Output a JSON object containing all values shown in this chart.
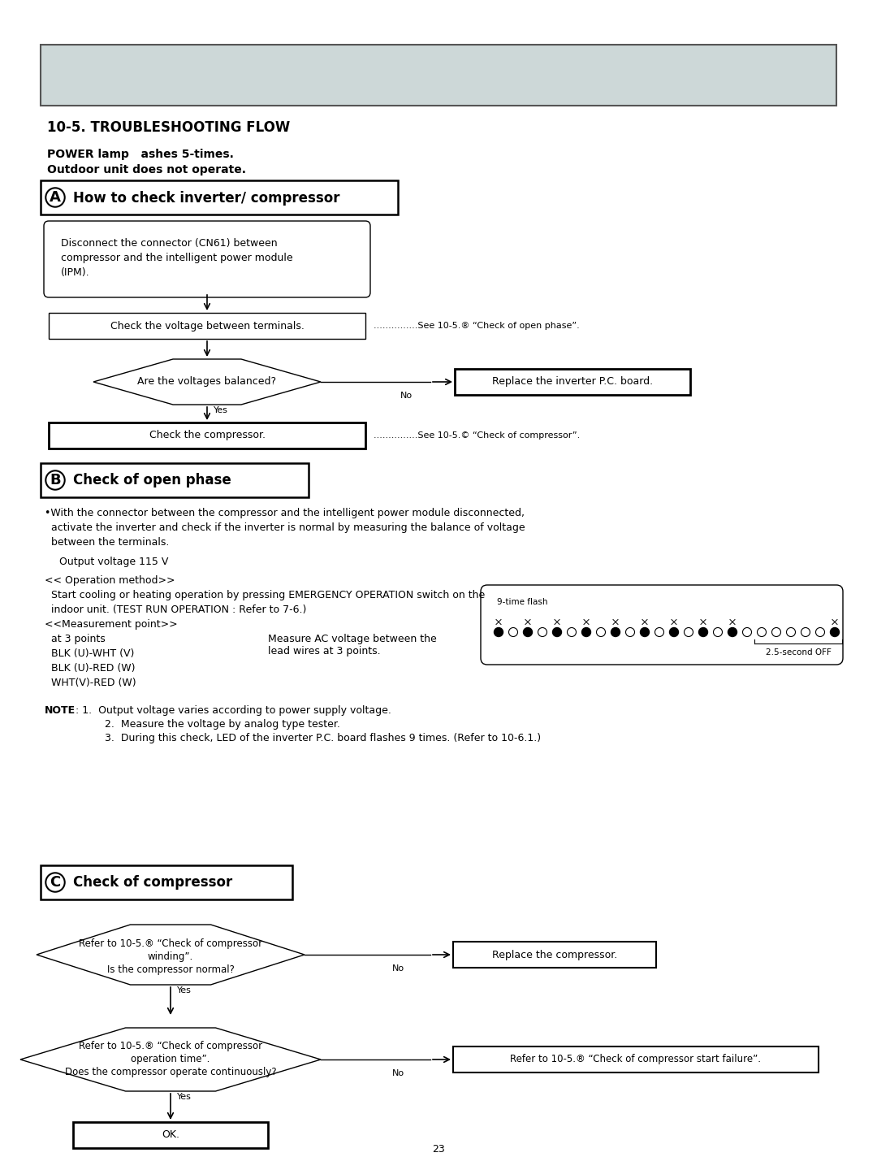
{
  "bg_color": "#ffffff",
  "header_rect_color": "#cdd8d8",
  "title_section": "10-5. TROUBLESHOOTING FLOW",
  "power_lamp_line1": "POWER lamp   ashes 5-times.",
  "power_lamp_line2": "Outdoor unit does not operate.",
  "section_A_title": "A  How to check inverter/ compressor",
  "section_B_title": "B  Check of open phase",
  "section_C_title": "C  Check of compressor",
  "box_A1_line1": "Disconnect the connector (CN61) between",
  "box_A1_line2": "compressor and the intelligent power module",
  "box_A1_line3": "(IPM).",
  "box_A2": "Check the voltage between terminals.",
  "diamond_A": "Are the voltages balanced?",
  "box_A3": "Check the compressor.",
  "box_A_no": "Replace the inverter P.C. board.",
  "ref_A2": "...............See 10-5.® “Check of open phase”.",
  "ref_A3": "...............See 10-5.© “Check of compressor”.",
  "section_B_bullet": "•With the connector between the compressor and the intelligent power module disconnected,",
  "section_B_bullet2": "  activate the inverter and check if the inverter is normal by measuring the balance of voltage",
  "section_B_bullet3": "  between the terminals.",
  "section_B_voltage": "  Output voltage 115 V",
  "section_B_op1": "<< Operation method>>",
  "section_B_op2": "  Start cooling or heating operation by pressing EMERGENCY OPERATION switch on the",
  "section_B_op3": "  indoor unit. (TEST RUN OPERATION : Refer to 7-6.)",
  "section_B_mp1": "<<Measurement point>>",
  "section_B_mp2": "  at 3 points",
  "section_B_mp3": "  BLK (U)-WHT (V)",
  "section_B_mp4": "  BLK (U)-RED (W)",
  "section_B_mp5": "  WHT(V)-RED (W)",
  "section_B_measure": "Measure AC voltage between the\nlead wires at 3 points.",
  "led_label": "9-time flash",
  "led_off_label": "2.5-second OFF",
  "note_bold": "NOTE",
  "note_text1": ": 1.  Output voltage varies according to power supply voltage.",
  "note_text2": "         2.  Measure the voltage by analog type tester.",
  "note_text3": "         3.  During this check, LED of the inverter P.C. board flashes 9 times. (Refer to 10-6.1.)",
  "section_C_c1a": "Refer to 10-5.® “Check of compressor",
  "section_C_c1b": "winding”.",
  "section_C_c1c": "Is the compressor normal?",
  "section_C_c2a": "Refer to 10-5.® “Check of compressor",
  "section_C_c2b": "operation time”.",
  "section_C_c2c": "Does the compressor operate continuously?",
  "section_C_no1": "Replace the compressor.",
  "section_C_no2": "Refer to 10-5.® “Check of compressor start failure”.",
  "section_C_ok": "OK.",
  "page_number": "23",
  "label_yes": "Yes",
  "label_no": "No"
}
